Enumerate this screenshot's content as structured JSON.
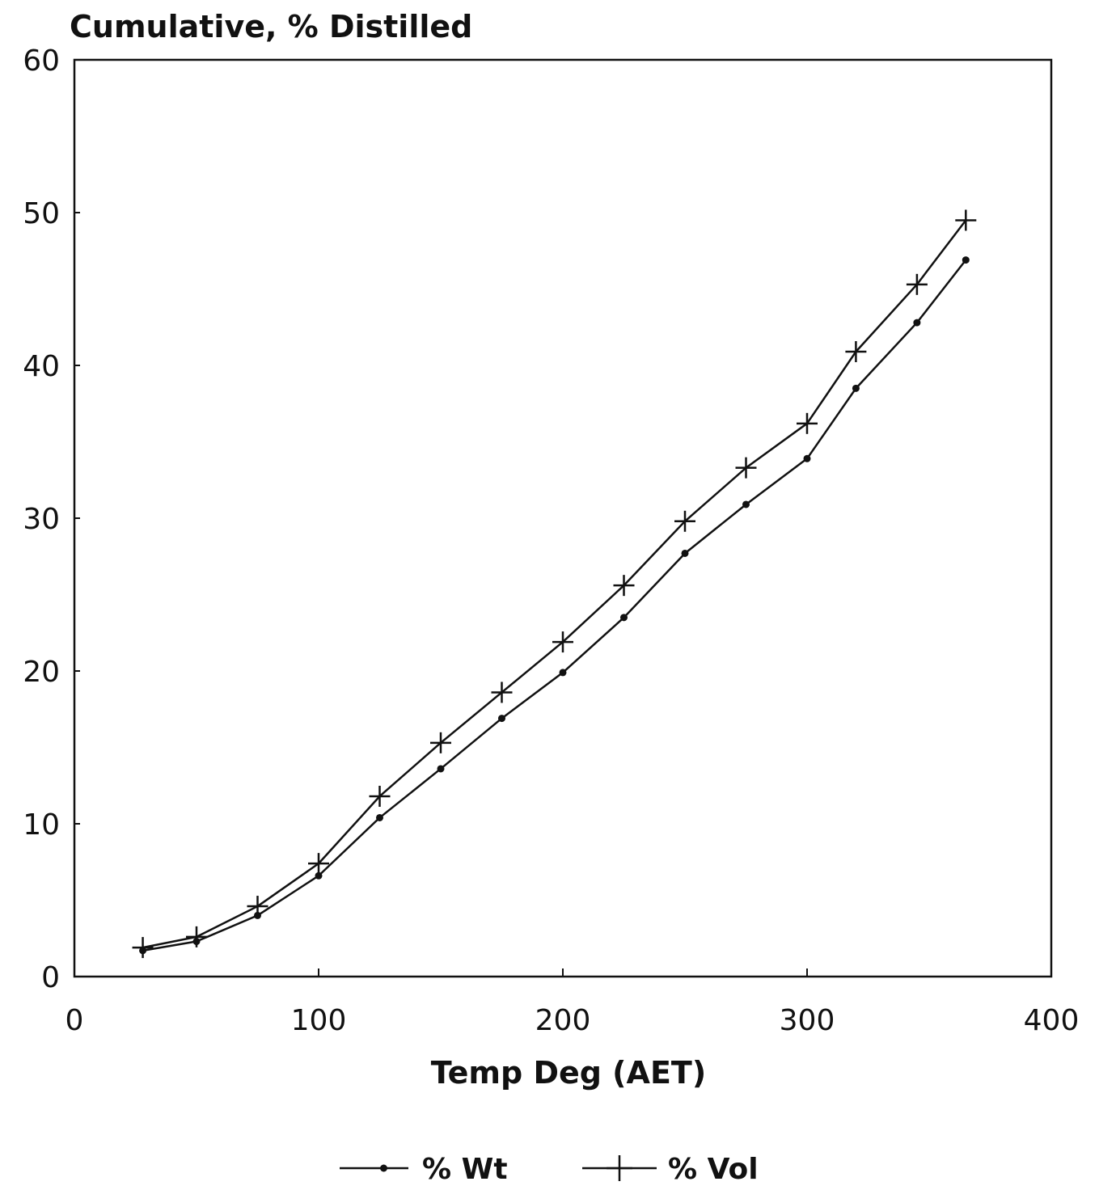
{
  "chart_data": {
    "type": "line",
    "ylabel": "Cumulative, % Distilled",
    "xlabel": "Temp Deg (AET)",
    "xlim": [
      0,
      400
    ],
    "ylim": [
      0,
      60
    ],
    "x_ticks": [
      0,
      100,
      200,
      300,
      400
    ],
    "y_ticks": [
      0,
      10,
      20,
      30,
      40,
      50,
      60
    ],
    "grid": false,
    "legend_position": "bottom",
    "series": [
      {
        "name": "% Wt",
        "marker": "dot",
        "color": "#111111",
        "x": [
          28,
          50,
          75,
          100,
          125,
          150,
          175,
          200,
          225,
          250,
          275,
          300,
          320,
          345,
          365
        ],
        "y": [
          1.7,
          2.3,
          4.0,
          6.6,
          10.4,
          13.6,
          16.9,
          19.9,
          23.5,
          27.7,
          30.9,
          33.9,
          38.5,
          42.8,
          46.9
        ]
      },
      {
        "name": "% Vol",
        "marker": "plus",
        "color": "#111111",
        "x": [
          28,
          50,
          75,
          100,
          125,
          150,
          175,
          200,
          225,
          250,
          275,
          300,
          320,
          345,
          365
        ],
        "y": [
          1.9,
          2.6,
          4.6,
          7.4,
          11.8,
          15.3,
          18.6,
          21.9,
          25.6,
          29.8,
          33.3,
          36.2,
          40.9,
          45.3,
          49.5
        ]
      }
    ]
  }
}
